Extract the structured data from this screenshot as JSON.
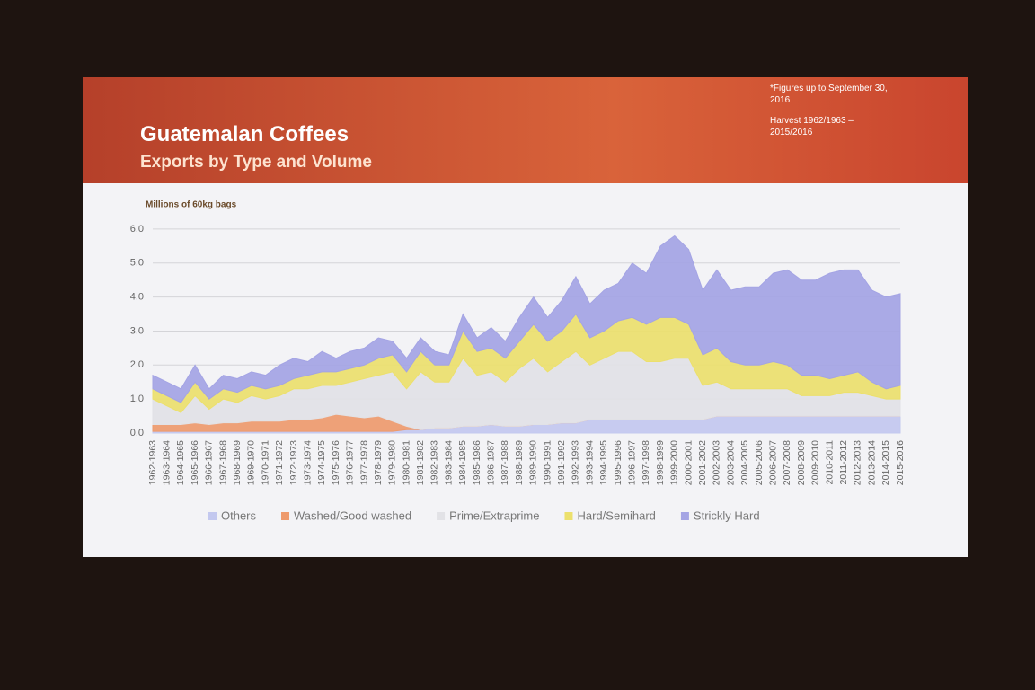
{
  "chart_data": {
    "type": "stacked_area",
    "title": "Guatemalan Coffees",
    "subtitle": "Exports by Type and Volume",
    "notes": [
      "*Figures up to September 30, 2016",
      "Harvest 1962/1963 – 2015/2016"
    ],
    "y_label": "Millions of 60kg bags",
    "categories": [
      "1962-1963",
      "1963-1964",
      "1964-1965",
      "1965-1966",
      "1966-1967",
      "1967-1968",
      "1968-1969",
      "1969-1970",
      "1970-1971",
      "1971-1972",
      "1972-1973",
      "1973-1974",
      "1974-1975",
      "1975-1976",
      "1976-1977",
      "1977-1978",
      "1978-1979",
      "1979-1980",
      "1980-1981",
      "1981-1982",
      "1982-1983",
      "1983-1984",
      "1984-1985",
      "1985-1986",
      "1986-1987",
      "1987-1988",
      "1988-1989",
      "1989-1990",
      "1990-1991",
      "1991-1992",
      "1992-1993",
      "1993-1994",
      "1994-1995",
      "1995-1996",
      "1996-1997",
      "1997-1998",
      "1998-1999",
      "1999-2000",
      "2000-2001",
      "2001-2002",
      "2002-2003",
      "2003-2004",
      "2004-2005",
      "2005-2006",
      "2006-2007",
      "2007-2008",
      "2008-2009",
      "2009-2010",
      "2010-2011",
      "2011-2012",
      "2012-2013",
      "2013-2014",
      "2014-2015",
      "2015-2016"
    ],
    "series": [
      {
        "name": "Others",
        "color": "#c3c8ef",
        "values": [
          0.05,
          0.05,
          0.05,
          0.05,
          0.05,
          0.05,
          0.05,
          0.05,
          0.05,
          0.05,
          0.05,
          0.05,
          0.05,
          0.05,
          0.05,
          0.05,
          0.05,
          0.05,
          0.1,
          0.1,
          0.15,
          0.15,
          0.2,
          0.2,
          0.25,
          0.2,
          0.2,
          0.25,
          0.25,
          0.3,
          0.3,
          0.4,
          0.4,
          0.4,
          0.4,
          0.4,
          0.4,
          0.4,
          0.4,
          0.4,
          0.5,
          0.5,
          0.5,
          0.5,
          0.5,
          0.5,
          0.5,
          0.5,
          0.5,
          0.5,
          0.5,
          0.5,
          0.5,
          0.5
        ]
      },
      {
        "name": "Washed/Good washed",
        "color": "#ee9a6c",
        "values": [
          0.2,
          0.2,
          0.2,
          0.25,
          0.2,
          0.25,
          0.25,
          0.3,
          0.3,
          0.3,
          0.35,
          0.35,
          0.4,
          0.5,
          0.45,
          0.4,
          0.45,
          0.3,
          0.1,
          0,
          0,
          0,
          0,
          0,
          0,
          0,
          0,
          0,
          0,
          0,
          0,
          0,
          0,
          0,
          0,
          0,
          0,
          0,
          0,
          0,
          0,
          0,
          0,
          0,
          0,
          0,
          0,
          0,
          0,
          0,
          0,
          0,
          0,
          0
        ]
      },
      {
        "name": "Prime/Extraprime",
        "color": "#e2e2e6",
        "values": [
          0.75,
          0.55,
          0.35,
          0.8,
          0.45,
          0.7,
          0.6,
          0.75,
          0.65,
          0.75,
          0.9,
          0.9,
          0.95,
          0.85,
          1.0,
          1.15,
          1.2,
          1.45,
          1.1,
          1.7,
          1.35,
          1.35,
          2.0,
          1.5,
          1.55,
          1.3,
          1.7,
          1.95,
          1.55,
          1.8,
          2.1,
          1.6,
          1.8,
          2.0,
          2.0,
          1.7,
          1.7,
          1.8,
          1.8,
          1.0,
          1.0,
          0.8,
          0.8,
          0.8,
          0.8,
          0.8,
          0.6,
          0.6,
          0.6,
          0.7,
          0.7,
          0.6,
          0.5,
          0.5
        ]
      },
      {
        "name": "Hard/Semihard",
        "color": "#ece06c",
        "values": [
          0.3,
          0.3,
          0.3,
          0.4,
          0.3,
          0.3,
          0.3,
          0.3,
          0.3,
          0.3,
          0.3,
          0.4,
          0.4,
          0.4,
          0.4,
          0.4,
          0.5,
          0.5,
          0.5,
          0.6,
          0.5,
          0.5,
          0.8,
          0.7,
          0.7,
          0.7,
          0.8,
          1.0,
          0.9,
          0.9,
          1.1,
          0.8,
          0.8,
          0.9,
          1.0,
          1.1,
          1.3,
          1.2,
          1.0,
          0.9,
          1.0,
          0.8,
          0.7,
          0.7,
          0.8,
          0.7,
          0.6,
          0.6,
          0.5,
          0.5,
          0.6,
          0.4,
          0.3,
          0.4
        ]
      },
      {
        "name": "Strickly Hard",
        "color": "#a4a4e4",
        "values": [
          0.4,
          0.4,
          0.4,
          0.5,
          0.3,
          0.4,
          0.4,
          0.4,
          0.4,
          0.6,
          0.6,
          0.4,
          0.6,
          0.4,
          0.5,
          0.5,
          0.6,
          0.4,
          0.4,
          0.4,
          0.4,
          0.3,
          0.5,
          0.4,
          0.6,
          0.5,
          0.7,
          0.8,
          0.7,
          0.9,
          1.1,
          1.0,
          1.2,
          1.1,
          1.6,
          1.5,
          2.1,
          2.4,
          2.2,
          1.9,
          2.3,
          2.1,
          2.3,
          2.3,
          2.6,
          2.8,
          2.8,
          2.8,
          3.1,
          3.1,
          3.0,
          2.7,
          2.7,
          2.7
        ]
      }
    ],
    "ylim": [
      0,
      6.5
    ],
    "yticks": [
      {
        "value": 0,
        "label": "0.0"
      },
      {
        "value": 1,
        "label": "1.0"
      },
      {
        "value": 2,
        "label": "2.0"
      },
      {
        "value": 3,
        "label": "3.0"
      },
      {
        "value": 4,
        "label": "4.0"
      },
      {
        "value": 5,
        "label": "5.0"
      },
      {
        "value": 6,
        "label": "6.0"
      }
    ],
    "grid": true,
    "legend": "bottom"
  }
}
